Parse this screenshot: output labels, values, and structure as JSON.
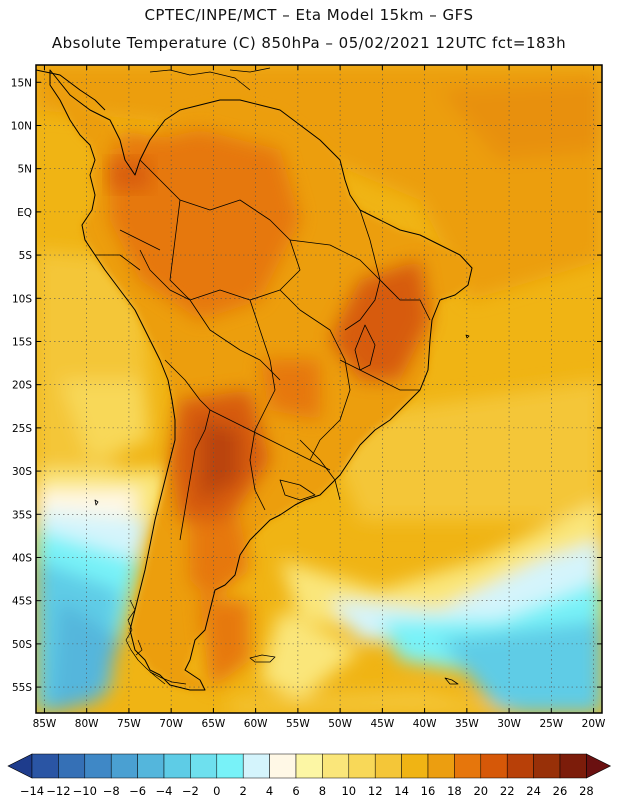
{
  "header": {
    "title_line1": "CPTEC/INPE/MCT –  Eta Model 15km – GFS",
    "title_line2": "Absolute Temperature (C) 850hPa – 05/02/2021 12UTC fct=183h"
  },
  "map": {
    "variable": "Absolute Temperature",
    "units": "C",
    "level": "850hPa",
    "model": "Eta Model 15km",
    "driver": "GFS",
    "init": "05/02/2021 12UTC",
    "forecast_hour": "183h",
    "lon_range": [
      -86,
      -19
    ],
    "lat_range": [
      -58,
      17
    ],
    "lat_ticks": [
      {
        "value": 15,
        "label": "15N"
      },
      {
        "value": 10,
        "label": "10N"
      },
      {
        "value": 5,
        "label": "5N"
      },
      {
        "value": 0,
        "label": "EQ"
      },
      {
        "value": -5,
        "label": "5S"
      },
      {
        "value": -10,
        "label": "10S"
      },
      {
        "value": -15,
        "label": "15S"
      },
      {
        "value": -20,
        "label": "20S"
      },
      {
        "value": -25,
        "label": "25S"
      },
      {
        "value": -30,
        "label": "30S"
      },
      {
        "value": -35,
        "label": "35S"
      },
      {
        "value": -40,
        "label": "40S"
      },
      {
        "value": -45,
        "label": "45S"
      },
      {
        "value": -50,
        "label": "50S"
      },
      {
        "value": -55,
        "label": "55S"
      }
    ],
    "lon_ticks": [
      {
        "value": -85,
        "label": "85W"
      },
      {
        "value": -80,
        "label": "80W"
      },
      {
        "value": -75,
        "label": "75W"
      },
      {
        "value": -70,
        "label": "70W"
      },
      {
        "value": -65,
        "label": "65W"
      },
      {
        "value": -60,
        "label": "60W"
      },
      {
        "value": -55,
        "label": "55W"
      },
      {
        "value": -50,
        "label": "50W"
      },
      {
        "value": -45,
        "label": "45W"
      },
      {
        "value": -40,
        "label": "40W"
      },
      {
        "value": -35,
        "label": "35W"
      },
      {
        "value": -30,
        "label": "30W"
      },
      {
        "value": -25,
        "label": "25W"
      },
      {
        "value": -20,
        "label": "20W"
      }
    ]
  },
  "colorbar": {
    "labels": [
      "-14",
      "-12",
      "-10",
      "-8",
      "-6",
      "-4",
      "-2",
      "0",
      "2",
      "4",
      "6",
      "8",
      "10",
      "12",
      "14",
      "16",
      "18",
      "20",
      "22",
      "24",
      "26",
      "28"
    ],
    "colors": [
      "#1e3c8c",
      "#2a55a4",
      "#3570b6",
      "#3f88c6",
      "#4aa0d2",
      "#54b6dc",
      "#5ecce6",
      "#6ee0ee",
      "#78f2f8",
      "#d4f4fc",
      "#fff8e6",
      "#fcf6a4",
      "#fae67a",
      "#f8d858",
      "#f4c638",
      "#f0b414",
      "#ec9e10",
      "#e6760c",
      "#d65808",
      "#b84008",
      "#983008",
      "#7c1c0a",
      "#6a1010"
    ]
  }
}
